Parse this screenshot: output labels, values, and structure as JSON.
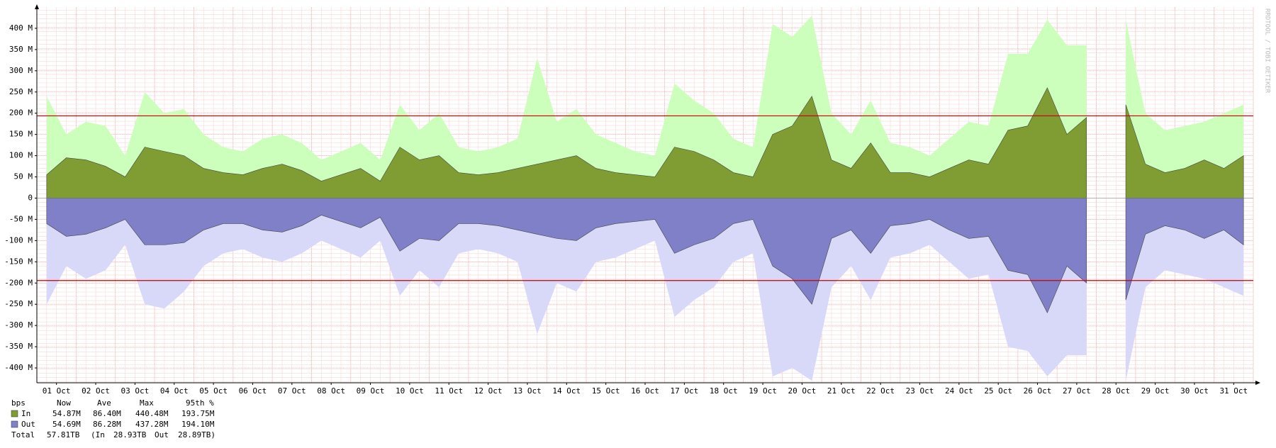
{
  "chart_data": {
    "type": "area",
    "side_text": "RRDTOOL / TOBI OETIKER",
    "x": [
      0.25,
      0.75,
      1.25,
      1.75,
      2.25,
      2.75,
      3.25,
      3.75,
      4.25,
      4.75,
      5.25,
      5.75,
      6.25,
      6.75,
      7.25,
      7.75,
      8.25,
      8.75,
      9.25,
      9.75,
      10.25,
      10.75,
      11.25,
      11.75,
      12.25,
      12.75,
      13.25,
      13.75,
      14.25,
      14.75,
      15.25,
      15.75,
      16.25,
      16.75,
      17.25,
      17.75,
      18.25,
      18.75,
      19.25,
      19.75,
      20.25,
      20.75,
      21.25,
      21.75,
      22.25,
      22.75,
      23.25,
      23.75,
      24.25,
      24.75,
      25.25,
      25.75,
      26.25,
      26.75,
      27.25,
      27.75,
      28.25,
      28.75,
      29.25,
      29.75,
      30.25,
      30.75
    ],
    "xlim": [
      0,
      31
    ],
    "xticks": [
      {
        "value": 0.5,
        "label": "01 Oct"
      },
      {
        "value": 1.5,
        "label": "02 Oct"
      },
      {
        "value": 2.5,
        "label": "03 Oct"
      },
      {
        "value": 3.5,
        "label": "04 Oct"
      },
      {
        "value": 4.5,
        "label": "05 Oct"
      },
      {
        "value": 5.5,
        "label": "06 Oct"
      },
      {
        "value": 6.5,
        "label": "07 Oct"
      },
      {
        "value": 7.5,
        "label": "08 Oct"
      },
      {
        "value": 8.5,
        "label": "09 Oct"
      },
      {
        "value": 9.5,
        "label": "10 Oct"
      },
      {
        "value": 10.5,
        "label": "11 Oct"
      },
      {
        "value": 11.5,
        "label": "12 Oct"
      },
      {
        "value": 12.5,
        "label": "13 Oct"
      },
      {
        "value": 13.5,
        "label": "14 Oct"
      },
      {
        "value": 14.5,
        "label": "15 Oct"
      },
      {
        "value": 15.5,
        "label": "16 Oct"
      },
      {
        "value": 16.5,
        "label": "17 Oct"
      },
      {
        "value": 17.5,
        "label": "18 Oct"
      },
      {
        "value": 18.5,
        "label": "19 Oct"
      },
      {
        "value": 19.5,
        "label": "20 Oct"
      },
      {
        "value": 20.5,
        "label": "21 Oct"
      },
      {
        "value": 21.5,
        "label": "22 Oct"
      },
      {
        "value": 22.5,
        "label": "23 Oct"
      },
      {
        "value": 23.5,
        "label": "24 Oct"
      },
      {
        "value": 24.5,
        "label": "25 Oct"
      },
      {
        "value": 25.5,
        "label": "26 Oct"
      },
      {
        "value": 26.5,
        "label": "27 Oct"
      },
      {
        "value": 27.5,
        "label": "28 Oct"
      },
      {
        "value": 28.5,
        "label": "29 Oct"
      },
      {
        "value": 29.5,
        "label": "30 Oct"
      },
      {
        "value": 30.5,
        "label": "31 Oct"
      }
    ],
    "ylim": [
      -435,
      450
    ],
    "yticks": [
      {
        "value": 400,
        "label": "400 M"
      },
      {
        "value": 350,
        "label": "350 M"
      },
      {
        "value": 300,
        "label": "300 M"
      },
      {
        "value": 250,
        "label": "250 M"
      },
      {
        "value": 200,
        "label": "200 M"
      },
      {
        "value": 150,
        "label": "150 M"
      },
      {
        "value": 100,
        "label": "100 M"
      },
      {
        "value": 50,
        "label": "50 M"
      },
      0,
      {
        "value": -50,
        "label": "-50 M"
      },
      {
        "value": -100,
        "label": "-100 M"
      },
      {
        "value": -150,
        "label": "-150 M"
      },
      {
        "value": -200,
        "label": "-200 M"
      },
      {
        "value": -250,
        "label": "-250 M"
      },
      {
        "value": -300,
        "label": "-300 M"
      },
      {
        "value": -350,
        "label": "-350 M"
      },
      {
        "value": -400,
        "label": "-400 M"
      }
    ],
    "grid": true,
    "hlines": [
      193.75,
      -194.1
    ],
    "hline_color": "#cc0000",
    "series": [
      {
        "color": "#ccffbb",
        "values": [
          240,
          150,
          180,
          170,
          100,
          250,
          200,
          210,
          150,
          120,
          110,
          140,
          150,
          130,
          90,
          110,
          130,
          90,
          220,
          160,
          200,
          120,
          110,
          120,
          140,
          330,
          180,
          210,
          150,
          130,
          110,
          100,
          270,
          230,
          200,
          140,
          120,
          410,
          380,
          430,
          200,
          150,
          230,
          130,
          120,
          100,
          140,
          180,
          170,
          340,
          340,
          420,
          360,
          360,
          null,
          420,
          200,
          160,
          170,
          180,
          200,
          220
        ]
      },
      {
        "color": "#d8d8f8",
        "values": [
          -250,
          -160,
          -190,
          -170,
          -110,
          -250,
          -260,
          -220,
          -160,
          -130,
          -120,
          -140,
          -150,
          -130,
          -100,
          -120,
          -140,
          -100,
          -230,
          -170,
          -210,
          -130,
          -120,
          -130,
          -150,
          -320,
          -200,
          -220,
          -150,
          -140,
          -120,
          -100,
          -280,
          -240,
          -210,
          -150,
          -130,
          -420,
          -400,
          -430,
          -210,
          -160,
          -240,
          -140,
          -130,
          -110,
          -150,
          -190,
          -180,
          -350,
          -360,
          -420,
          -370,
          -370,
          null,
          -430,
          -210,
          -170,
          -180,
          -190,
          -210,
          -230
        ]
      },
      {
        "name": "In",
        "color": "#7f9d33",
        "values": [
          55,
          95,
          90,
          75,
          50,
          120,
          110,
          100,
          70,
          60,
          55,
          70,
          80,
          65,
          40,
          55,
          70,
          40,
          120,
          90,
          100,
          60,
          55,
          60,
          70,
          80,
          90,
          100,
          70,
          60,
          55,
          50,
          120,
          110,
          90,
          60,
          50,
          150,
          170,
          240,
          90,
          70,
          130,
          60,
          60,
          50,
          70,
          90,
          80,
          160,
          170,
          260,
          150,
          190,
          null,
          220,
          80,
          60,
          70,
          90,
          70,
          100
        ]
      },
      {
        "name": "Out",
        "color": "#8080c8",
        "values": [
          -60,
          -90,
          -85,
          -70,
          -50,
          -110,
          -110,
          -105,
          -75,
          -60,
          -60,
          -75,
          -80,
          -65,
          -40,
          -55,
          -70,
          -45,
          -125,
          -95,
          -100,
          -60,
          -60,
          -65,
          -75,
          -85,
          -95,
          -100,
          -70,
          -60,
          -55,
          -50,
          -130,
          -110,
          -95,
          -60,
          -50,
          -160,
          -190,
          -250,
          -95,
          -75,
          -130,
          -65,
          -60,
          -50,
          -75,
          -95,
          -90,
          -170,
          -180,
          -270,
          -160,
          -200,
          null,
          -240,
          -85,
          -65,
          -75,
          -95,
          -75,
          -110
        ]
      }
    ],
    "legend": {
      "header": [
        "bps",
        "Now",
        "Ave",
        "Max",
        "95th %"
      ],
      "rows": [
        [
          "In",
          "54.87M",
          "86.40M",
          "440.48M",
          "193.75M"
        ],
        [
          "Out",
          "54.69M",
          "86.28M",
          "437.28M",
          "194.10M"
        ]
      ],
      "total": [
        "Total",
        "57.81TB",
        "(In",
        "28.93TB",
        "Out",
        "28.89TB)"
      ]
    }
  }
}
